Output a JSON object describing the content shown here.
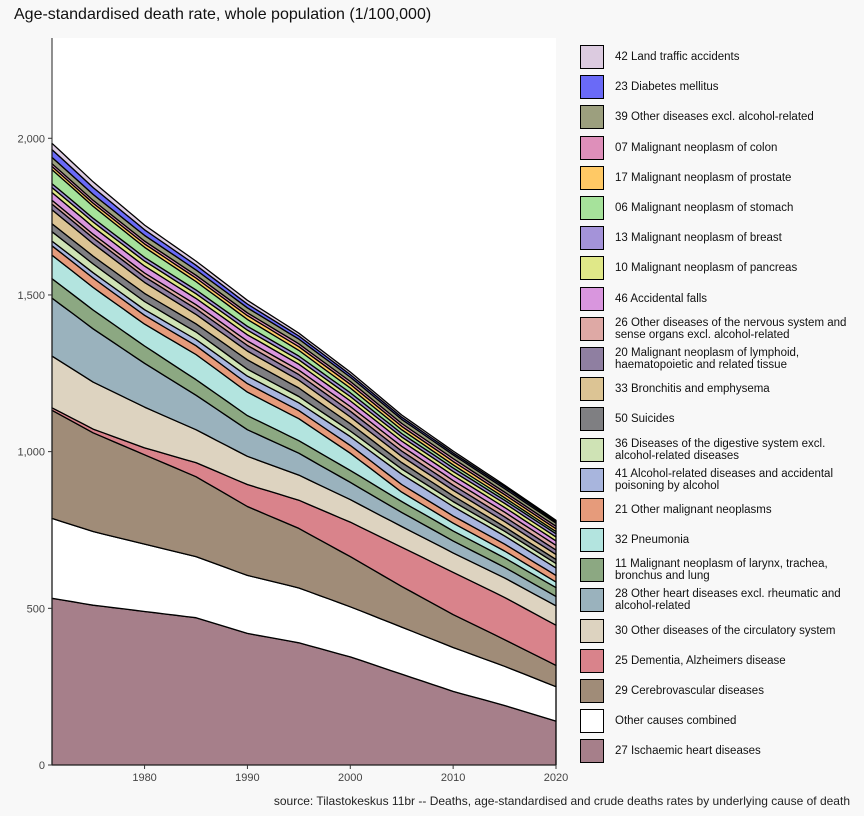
{
  "title": "Age-standardised death rate, whole population (1/100,000)",
  "source": "source: Tilastokeskus 11br -- Deaths, age-standardised and crude deaths rates by underlying cause of death",
  "chart_data": {
    "type": "area",
    "stacked": true,
    "xlim": [
      1971,
      2020
    ],
    "ylim": [
      0,
      2320
    ],
    "x_ticks": [
      1980,
      1990,
      2000,
      2010,
      2020
    ],
    "y_ticks": [
      0,
      500,
      1000,
      1500,
      2000
    ],
    "y_tick_labels": [
      "0",
      "500",
      "1,000",
      "1,500",
      "2,000"
    ],
    "grid": false,
    "legend_position": "right",
    "series": [
      {
        "name": "27 Ischaemic heart diseases",
        "color": "#a67f8a",
        "values": [
          [
            1971,
            532
          ],
          [
            1975,
            510
          ],
          [
            1980,
            490
          ],
          [
            1985,
            470
          ],
          [
            1990,
            420
          ],
          [
            1995,
            390
          ],
          [
            2000,
            345
          ],
          [
            2005,
            290
          ],
          [
            2010,
            235
          ],
          [
            2015,
            190
          ],
          [
            2020,
            140
          ]
        ]
      },
      {
        "name": "Other causes combined",
        "color": "#ffffff",
        "values": [
          [
            1971,
            255
          ],
          [
            1975,
            235
          ],
          [
            1980,
            215
          ],
          [
            1985,
            195
          ],
          [
            1990,
            185
          ],
          [
            1995,
            175
          ],
          [
            2000,
            160
          ],
          [
            2005,
            150
          ],
          [
            2010,
            140
          ],
          [
            2015,
            125
          ],
          [
            2020,
            110
          ]
        ]
      },
      {
        "name": "29 Cerebrovascular diseases",
        "color": "#a08c78",
        "values": [
          [
            1971,
            345
          ],
          [
            1975,
            315
          ],
          [
            1980,
            285
          ],
          [
            1985,
            255
          ],
          [
            1990,
            220
          ],
          [
            1995,
            190
          ],
          [
            2000,
            160
          ],
          [
            2005,
            130
          ],
          [
            2010,
            105
          ],
          [
            2015,
            85
          ],
          [
            2020,
            68
          ]
        ]
      },
      {
        "name": "25 Dementia, Alzheimers disease",
        "color": "#d9838b",
        "values": [
          [
            1971,
            8
          ],
          [
            1975,
            12
          ],
          [
            1980,
            22
          ],
          [
            1985,
            45
          ],
          [
            1990,
            70
          ],
          [
            1995,
            90
          ],
          [
            2000,
            110
          ],
          [
            2005,
            125
          ],
          [
            2010,
            135
          ],
          [
            2015,
            135
          ],
          [
            2020,
            128
          ]
        ]
      },
      {
        "name": "30 Other diseases of the circulatory system",
        "color": "#ddd3c0",
        "values": [
          [
            1971,
            165
          ],
          [
            1975,
            150
          ],
          [
            1980,
            130
          ],
          [
            1985,
            105
          ],
          [
            1990,
            90
          ],
          [
            1995,
            80
          ],
          [
            2000,
            72
          ],
          [
            2005,
            66
          ],
          [
            2010,
            62
          ],
          [
            2015,
            62
          ],
          [
            2020,
            62
          ]
        ]
      },
      {
        "name": "28 Other heart diseases excl. rheumatic and alcohol-related",
        "color": "#9ab2bd",
        "values": [
          [
            1971,
            185
          ],
          [
            1975,
            170
          ],
          [
            1980,
            140
          ],
          [
            1985,
            110
          ],
          [
            1990,
            85
          ],
          [
            1995,
            70
          ],
          [
            2000,
            55
          ],
          [
            2005,
            45
          ],
          [
            2010,
            38
          ],
          [
            2015,
            34
          ],
          [
            2020,
            30
          ]
        ]
      },
      {
        "name": "11 Malignant neoplasm of larynx, trachea, bronchus and lung",
        "color": "#8ca882",
        "values": [
          [
            1971,
            62
          ],
          [
            1975,
            60
          ],
          [
            1980,
            55
          ],
          [
            1985,
            50
          ],
          [
            1990,
            45
          ],
          [
            1995,
            40
          ],
          [
            2000,
            38
          ],
          [
            2005,
            35
          ],
          [
            2010,
            32
          ],
          [
            2015,
            30
          ],
          [
            2020,
            28
          ]
        ]
      },
      {
        "name": "32 Pneumonia",
        "color": "#b3e4df",
        "values": [
          [
            1971,
            75
          ],
          [
            1975,
            72
          ],
          [
            1980,
            70
          ],
          [
            1985,
            80
          ],
          [
            1990,
            75
          ],
          [
            1995,
            70
          ],
          [
            2000,
            55
          ],
          [
            2005,
            30
          ],
          [
            2010,
            25
          ],
          [
            2015,
            22
          ],
          [
            2020,
            18
          ]
        ]
      },
      {
        "name": "21 Other malignant neoplasms",
        "color": "#e69b7b",
        "values": [
          [
            1971,
            30
          ],
          [
            1975,
            30
          ],
          [
            1980,
            28
          ],
          [
            1985,
            28
          ],
          [
            1990,
            27
          ],
          [
            1995,
            26
          ],
          [
            2000,
            25
          ],
          [
            2005,
            24
          ],
          [
            2010,
            23
          ],
          [
            2015,
            22
          ],
          [
            2020,
            21
          ]
        ]
      },
      {
        "name": "41 Alcohol-related diseases and accidental poisoning by alcohol",
        "color": "#a8b5dd",
        "values": [
          [
            1971,
            15
          ],
          [
            1975,
            17
          ],
          [
            1980,
            18
          ],
          [
            1985,
            20
          ],
          [
            1990,
            24
          ],
          [
            1995,
            25
          ],
          [
            2000,
            28
          ],
          [
            2005,
            33
          ],
          [
            2010,
            30
          ],
          [
            2015,
            26
          ],
          [
            2020,
            24
          ]
        ]
      },
      {
        "name": "36 Diseases of the digestive system excl. alcohol-related diseases",
        "color": "#cfe3b5",
        "values": [
          [
            1971,
            30
          ],
          [
            1975,
            28
          ],
          [
            1980,
            26
          ],
          [
            1985,
            24
          ],
          [
            1990,
            22
          ],
          [
            1995,
            20
          ],
          [
            2000,
            18
          ],
          [
            2005,
            17
          ],
          [
            2010,
            16
          ],
          [
            2015,
            15
          ],
          [
            2020,
            14
          ]
        ]
      },
      {
        "name": "50 Suicides",
        "color": "#7f7f82",
        "values": [
          [
            1971,
            25
          ],
          [
            1975,
            25
          ],
          [
            1980,
            26
          ],
          [
            1985,
            26
          ],
          [
            1990,
            30
          ],
          [
            1995,
            27
          ],
          [
            2000,
            23
          ],
          [
            2005,
            20
          ],
          [
            2010,
            18
          ],
          [
            2015,
            14
          ],
          [
            2020,
            13
          ]
        ]
      },
      {
        "name": "33 Bronchitis and emphysema",
        "color": "#dcc494",
        "values": [
          [
            1971,
            45
          ],
          [
            1975,
            40
          ],
          [
            1980,
            35
          ],
          [
            1985,
            30
          ],
          [
            1990,
            28
          ],
          [
            1995,
            25
          ],
          [
            2000,
            22
          ],
          [
            2005,
            20
          ],
          [
            2010,
            18
          ],
          [
            2015,
            17
          ],
          [
            2020,
            16
          ]
        ]
      },
      {
        "name": "20 Malignant neoplasm of lymphoid, haematopoietic and related tissue",
        "color": "#8f7fa1",
        "values": [
          [
            1971,
            18
          ],
          [
            1975,
            18
          ],
          [
            1980,
            18
          ],
          [
            1985,
            18
          ],
          [
            1990,
            18
          ],
          [
            1995,
            18
          ],
          [
            2000,
            18
          ],
          [
            2005,
            17
          ],
          [
            2010,
            16
          ],
          [
            2015,
            15
          ],
          [
            2020,
            14
          ]
        ]
      },
      {
        "name": "26 Other diseases of the nervous system and sense organs excl. alcohol-related",
        "color": "#dea9a5",
        "values": [
          [
            1971,
            12
          ],
          [
            1975,
            12
          ],
          [
            1980,
            12
          ],
          [
            1985,
            13
          ],
          [
            1990,
            14
          ],
          [
            1995,
            14
          ],
          [
            2000,
            15
          ],
          [
            2005,
            15
          ],
          [
            2010,
            15
          ],
          [
            2015,
            15
          ],
          [
            2020,
            15
          ]
        ]
      },
      {
        "name": "46 Accidental falls",
        "color": "#d996de",
        "values": [
          [
            1971,
            25
          ],
          [
            1975,
            23
          ],
          [
            1980,
            22
          ],
          [
            1985,
            20
          ],
          [
            1990,
            20
          ],
          [
            1995,
            19
          ],
          [
            2000,
            18
          ],
          [
            2005,
            17
          ],
          [
            2010,
            16
          ],
          [
            2015,
            15
          ],
          [
            2020,
            14
          ]
        ]
      },
      {
        "name": "10 Malignant neoplasm of pancreas",
        "color": "#e0e888",
        "values": [
          [
            1971,
            16
          ],
          [
            1975,
            16
          ],
          [
            1980,
            16
          ],
          [
            1985,
            15
          ],
          [
            1990,
            15
          ],
          [
            1995,
            14
          ],
          [
            2000,
            14
          ],
          [
            2005,
            13
          ],
          [
            2010,
            13
          ],
          [
            2015,
            13
          ],
          [
            2020,
            13
          ]
        ]
      },
      {
        "name": "13 Malignant neoplasm of breast",
        "color": "#a493d9",
        "values": [
          [
            1971,
            12
          ],
          [
            1975,
            12
          ],
          [
            1980,
            12
          ],
          [
            1985,
            12
          ],
          [
            1990,
            12
          ],
          [
            1995,
            12
          ],
          [
            2000,
            12
          ],
          [
            2005,
            11
          ],
          [
            2010,
            11
          ],
          [
            2015,
            10
          ],
          [
            2020,
            10
          ]
        ]
      },
      {
        "name": "06 Malignant neoplasm of stomach",
        "color": "#a6e29b",
        "values": [
          [
            1971,
            45
          ],
          [
            1975,
            38
          ],
          [
            1980,
            32
          ],
          [
            1985,
            27
          ],
          [
            1990,
            22
          ],
          [
            1995,
            18
          ],
          [
            2000,
            15
          ],
          [
            2005,
            12
          ],
          [
            2010,
            10
          ],
          [
            2015,
            8
          ],
          [
            2020,
            7
          ]
        ]
      },
      {
        "name": "17 Malignant neoplasm of prostate",
        "color": "#ffc965",
        "values": [
          [
            1971,
            10
          ],
          [
            1975,
            10
          ],
          [
            1980,
            11
          ],
          [
            1985,
            11
          ],
          [
            1990,
            12
          ],
          [
            1995,
            12
          ],
          [
            2000,
            12
          ],
          [
            2005,
            11
          ],
          [
            2010,
            11
          ],
          [
            2015,
            10
          ],
          [
            2020,
            9
          ]
        ]
      },
      {
        "name": "07 Malignant neoplasm of colon",
        "color": "#de8fba",
        "values": [
          [
            1971,
            9
          ],
          [
            1975,
            9
          ],
          [
            1980,
            9
          ],
          [
            1985,
            9
          ],
          [
            1990,
            9
          ],
          [
            1995,
            9
          ],
          [
            2000,
            9
          ],
          [
            2005,
            9
          ],
          [
            2010,
            9
          ],
          [
            2015,
            8
          ],
          [
            2020,
            8
          ]
        ]
      },
      {
        "name": "39 Other diseases excl. alcohol-related",
        "color": "#9c9f7e",
        "values": [
          [
            1971,
            20
          ],
          [
            1975,
            19
          ],
          [
            1980,
            18
          ],
          [
            1985,
            17
          ],
          [
            1990,
            16
          ],
          [
            1995,
            15
          ],
          [
            2000,
            14
          ],
          [
            2005,
            13
          ],
          [
            2010,
            12
          ],
          [
            2015,
            11
          ],
          [
            2020,
            10
          ]
        ]
      },
      {
        "name": "23 Diabetes mellitus",
        "color": "#6a6af7",
        "values": [
          [
            1971,
            25
          ],
          [
            1975,
            22
          ],
          [
            1980,
            18
          ],
          [
            1985,
            15
          ],
          [
            1990,
            12
          ],
          [
            1995,
            10
          ],
          [
            2000,
            8
          ],
          [
            2005,
            7
          ],
          [
            2010,
            6
          ],
          [
            2015,
            6
          ],
          [
            2020,
            5
          ]
        ]
      },
      {
        "name": "42 Land traffic accidents",
        "color": "#dccbe0",
        "values": [
          [
            1971,
            20
          ],
          [
            1975,
            18
          ],
          [
            1980,
            15
          ],
          [
            1985,
            13
          ],
          [
            1990,
            12
          ],
          [
            1995,
            9
          ],
          [
            2000,
            8
          ],
          [
            2005,
            7
          ],
          [
            2010,
            6
          ],
          [
            2015,
            5
          ],
          [
            2020,
            4
          ]
        ]
      }
    ]
  }
}
